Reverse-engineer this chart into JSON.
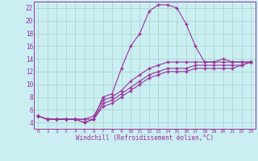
{
  "xlabel": "Windchill (Refroidissement éolien,°C)",
  "background_color": "#cbeef3",
  "grid_color": "#a8d8c8",
  "line_color": "#993399",
  "xlim": [
    -0.5,
    23.5
  ],
  "ylim": [
    3.0,
    23.0
  ],
  "xticks": [
    0,
    1,
    2,
    3,
    4,
    5,
    6,
    7,
    8,
    9,
    10,
    11,
    12,
    13,
    14,
    15,
    16,
    17,
    18,
    19,
    20,
    21,
    22,
    23
  ],
  "yticks": [
    4,
    6,
    8,
    10,
    12,
    14,
    16,
    18,
    20,
    22
  ],
  "line1_x": [
    0,
    1,
    2,
    3,
    4,
    5,
    6,
    7,
    8,
    9,
    10,
    11,
    12,
    13,
    14,
    15,
    16,
    17,
    18,
    19,
    20,
    21,
    22,
    23
  ],
  "line1_y": [
    5.0,
    4.5,
    4.5,
    4.5,
    4.5,
    4.5,
    4.5,
    8.0,
    8.5,
    12.5,
    16.0,
    18.0,
    21.5,
    22.5,
    22.5,
    22.0,
    19.5,
    16.0,
    13.5,
    13.5,
    14.0,
    13.5,
    13.5,
    13.5
  ],
  "line2_x": [
    0,
    1,
    2,
    3,
    4,
    5,
    6,
    7,
    8,
    9,
    10,
    11,
    12,
    13,
    14,
    15,
    16,
    17,
    18,
    19,
    20,
    21,
    22,
    23
  ],
  "line2_y": [
    5.0,
    4.5,
    4.5,
    4.5,
    4.5,
    4.5,
    5.0,
    7.5,
    8.0,
    9.0,
    10.5,
    11.5,
    12.5,
    13.0,
    13.5,
    13.5,
    13.5,
    13.5,
    13.5,
    13.5,
    13.5,
    13.5,
    13.5,
    13.5
  ],
  "line3_x": [
    0,
    1,
    2,
    3,
    4,
    5,
    6,
    7,
    8,
    9,
    10,
    11,
    12,
    13,
    14,
    15,
    16,
    17,
    18,
    19,
    20,
    21,
    22,
    23
  ],
  "line3_y": [
    5.0,
    4.5,
    4.5,
    4.5,
    4.5,
    4.0,
    4.5,
    7.0,
    7.5,
    8.5,
    9.5,
    10.5,
    11.5,
    12.0,
    12.5,
    12.5,
    12.5,
    13.0,
    13.0,
    13.0,
    13.0,
    13.0,
    13.0,
    13.5
  ],
  "line4_x": [
    0,
    1,
    2,
    3,
    4,
    5,
    6,
    7,
    8,
    9,
    10,
    11,
    12,
    13,
    14,
    15,
    16,
    17,
    18,
    19,
    20,
    21,
    22,
    23
  ],
  "line4_y": [
    5.0,
    4.5,
    4.5,
    4.5,
    4.5,
    4.0,
    4.5,
    6.5,
    7.0,
    8.0,
    9.0,
    10.0,
    11.0,
    11.5,
    12.0,
    12.0,
    12.0,
    12.5,
    12.5,
    12.5,
    12.5,
    12.5,
    13.0,
    13.5
  ]
}
